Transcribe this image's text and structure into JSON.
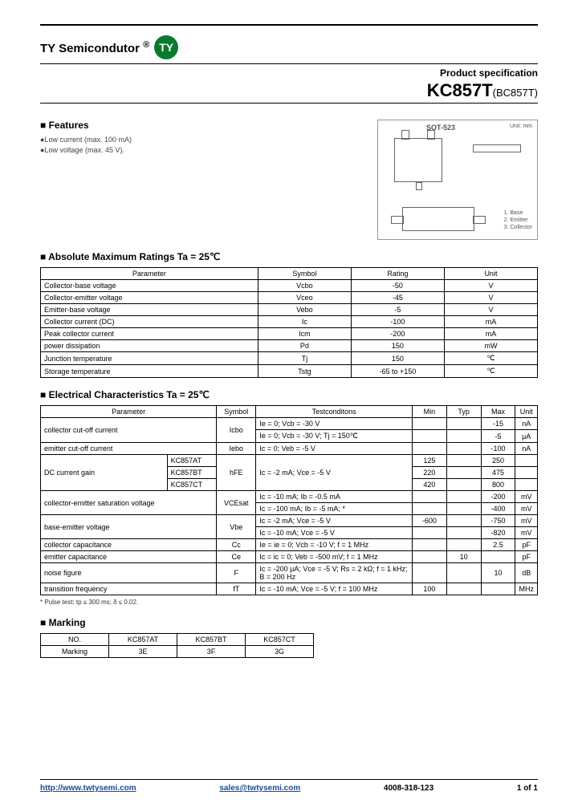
{
  "header": {
    "company": "TY Semicondutor",
    "logo": "TY",
    "spec_label": "Product specification",
    "part_main": "KC857T",
    "part_sub": "(BC857T)"
  },
  "features": {
    "title": "■ Features",
    "items": [
      "●Low current (max. 100 mA)",
      "●Low voltage (max. 45 V)."
    ]
  },
  "diagram": {
    "package": "SOT-523",
    "unit": "Unit: mm",
    "pins": "1. Base\n2. Emitter\n3. Collector"
  },
  "abs_max": {
    "title": "■ Absolute Maximum Ratings Ta = 25℃",
    "headers": [
      "Parameter",
      "Symbol",
      "Rating",
      "Unit"
    ],
    "rows": [
      [
        "Collector-base voltage",
        "Vcbo",
        "-50",
        "V"
      ],
      [
        "Collector-emitter voltage",
        "Vceo",
        "-45",
        "V"
      ],
      [
        "Emitter-base voltage",
        "Vebo",
        "-5",
        "V"
      ],
      [
        "Collector current (DC)",
        "Ic",
        "-100",
        "mA"
      ],
      [
        "Peak collector current",
        "Icm",
        "-200",
        "mA"
      ],
      [
        "power dissipation",
        "Pd",
        "150",
        "mW"
      ],
      [
        "Junction temperature",
        "Tj",
        "150",
        "℃"
      ],
      [
        "Storage temperature",
        "Tstg",
        "-65 to +150",
        "℃"
      ]
    ]
  },
  "elec": {
    "title": "■ Electrical Characteristics Ta = 25℃",
    "headers": [
      "Parameter",
      "Symbol",
      "Testconditons",
      "Min",
      "Typ",
      "Max",
      "Unit"
    ],
    "note": "* Pulse test: tp ≤ 300 ms; δ ≤ 0.02."
  },
  "er": {
    "r1": {
      "p": "collector cut-off current",
      "s": "Icbo",
      "c": "Ie = 0; Vcb = -30 V",
      "max": "-15",
      "u": "nA"
    },
    "r2": {
      "c": "Ie = 0; Vcb = -30 V; Tj = 150℃",
      "max": "-5",
      "u": "μA"
    },
    "r3": {
      "p": "emitter cut-off current",
      "s": "Iebo",
      "c": "Ic = 0; Veb = -5 V",
      "max": "-100",
      "u": "nA"
    },
    "r4": {
      "p": "DC current gain",
      "v": "KC857AT",
      "s": "hFE",
      "c": "Ic = -2 mA; Vce = -5 V",
      "min": "125",
      "max": "250"
    },
    "r5": {
      "v": "KC857BT",
      "min": "220",
      "max": "475"
    },
    "r6": {
      "v": "KC857CT",
      "min": "420",
      "max": "800"
    },
    "r7": {
      "p": "collector-emitter saturation voltage",
      "s": "VCEsat",
      "c": "Ic = -10 mA; Ib = -0.5 mA",
      "max": "-200",
      "u": "mV"
    },
    "r8": {
      "c": "Ic = -100 mA; Ib = -5 mA; *",
      "max": "-400",
      "u": "mV"
    },
    "r9": {
      "p": "base-emitter voltage",
      "s": "Vbe",
      "c": "Ic = -2 mA; Vce = -5 V",
      "min": "-600",
      "max": "-750",
      "u": "mV"
    },
    "r10": {
      "c": "Ic = -10 mA; Vce = -5 V",
      "max": "-820",
      "u": "mV"
    },
    "r11": {
      "p": "collector capacitance",
      "s": "Cc",
      "c": "Ie = ie = 0; Vcb = -10 V; f = 1 MHz",
      "max": "2.5",
      "u": "pF"
    },
    "r12": {
      "p": "emitter capacitance",
      "s": "Ce",
      "c": "Ic = ic = 0; Veb = -500 mV; f = 1 MHz",
      "typ": "10",
      "u": "pF"
    },
    "r13": {
      "p": "noise figure",
      "s": "F",
      "c": "Ic = -200 μA; Vce = -5 V; Rs = 2 kΩ; f = 1 kHz; B = 200 Hz",
      "max": "10",
      "u": "dB"
    },
    "r14": {
      "p": "transition frequency",
      "s": "fT",
      "c": "Ic = -10 mA; Vce = -5 V; f = 100 MHz",
      "min": "100",
      "u": "MHz"
    }
  },
  "marking": {
    "title": "■ Marking",
    "headers": [
      "NO.",
      "KC857AT",
      "KC857BT",
      "KC857CT"
    ],
    "row": [
      "Marking",
      "3E",
      "3F",
      "3G"
    ]
  },
  "footer": {
    "url": "http://www.twtysemi.com",
    "email": "sales@twtysemi.com",
    "phone": "4008-318-123",
    "page": "1 of 1"
  }
}
